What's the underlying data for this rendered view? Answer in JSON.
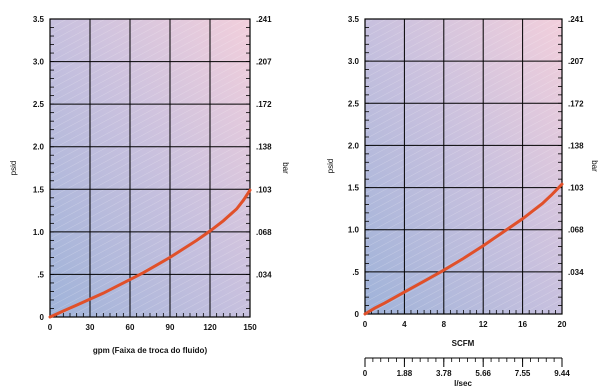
{
  "chart_data": [
    {
      "type": "line",
      "xlabel": "gpm (Faixa de troca do fluido)",
      "ylabel": "psid",
      "y2label": "bar",
      "xlim": [
        0,
        150
      ],
      "ylim": [
        0,
        3.5
      ],
      "x_ticks": [
        0,
        30,
        60,
        90,
        120,
        150
      ],
      "x_tick_labels": [
        "0",
        "30",
        "60",
        "90",
        "120",
        "150"
      ],
      "y_ticks": [
        0,
        0.5,
        1.0,
        1.5,
        2.0,
        2.5,
        3.0,
        3.5
      ],
      "y_tick_labels": [
        "0",
        ".5",
        "1.0",
        "1.5",
        "2.0",
        "2.5",
        "3.0",
        "3.5"
      ],
      "y2_ticks": [
        0.5,
        1.0,
        1.5,
        2.0,
        2.5,
        3.0,
        3.5
      ],
      "y2_tick_labels": [
        ".034",
        ".068",
        ".103",
        ".138",
        ".172",
        ".207",
        ".241"
      ],
      "grid": true,
      "line_color": "#e0502a",
      "series": [
        {
          "x": [
            0,
            10,
            20,
            30,
            40,
            50,
            60,
            70,
            80,
            90,
            100,
            110,
            120,
            130,
            140,
            145,
            150
          ],
          "y": [
            0,
            0.07,
            0.14,
            0.21,
            0.28,
            0.36,
            0.44,
            0.52,
            0.61,
            0.7,
            0.8,
            0.9,
            1.01,
            1.13,
            1.27,
            1.37,
            1.49
          ]
        }
      ]
    },
    {
      "type": "line",
      "xlabel": "SCFM",
      "x2label": "l/sec",
      "ylabel": "psid",
      "y2label": "bar",
      "xlim": [
        0,
        20
      ],
      "ylim": [
        0,
        3.5
      ],
      "x_ticks": [
        0,
        4,
        8,
        12,
        16,
        20
      ],
      "x_tick_labels": [
        "0",
        "4",
        "8",
        "12",
        "16",
        "20"
      ],
      "x2_ticks": [
        0,
        4,
        8,
        12,
        16,
        20
      ],
      "x2_tick_labels": [
        "0",
        "1.88",
        "3.78",
        "5.66",
        "7.55",
        "9.44"
      ],
      "y_ticks": [
        0,
        0.5,
        1.0,
        1.5,
        2.0,
        2.5,
        3.0,
        3.5
      ],
      "y_tick_labels": [
        "0",
        ".5",
        "1.0",
        "1.5",
        "2.0",
        "2.5",
        "3.0",
        "3.5"
      ],
      "y2_ticks": [
        0.5,
        1.0,
        1.5,
        2.0,
        2.5,
        3.0,
        3.5
      ],
      "y2_tick_labels": [
        ".034",
        ".068",
        ".103",
        ".138",
        ".172",
        ".207",
        ".241"
      ],
      "grid": true,
      "line_color": "#e0502a",
      "series": [
        {
          "x": [
            0,
            1,
            2,
            4,
            6,
            8,
            10,
            12,
            14,
            16,
            17,
            18,
            19,
            20
          ],
          "y": [
            0,
            0.07,
            0.13,
            0.26,
            0.39,
            0.52,
            0.66,
            0.81,
            0.97,
            1.13,
            1.22,
            1.31,
            1.42,
            1.54
          ]
        }
      ]
    }
  ]
}
